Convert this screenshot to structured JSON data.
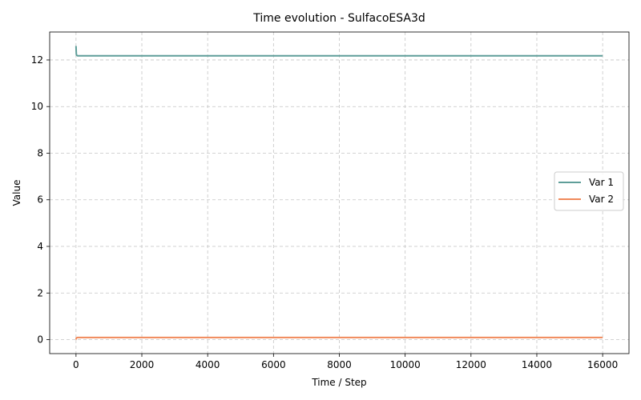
{
  "chart_data": {
    "type": "line",
    "title": "Time evolution - SulfacoESA3d",
    "xlabel": "Time / Step",
    "ylabel": "Value",
    "xlim": [
      -800,
      16800
    ],
    "ylim": [
      -0.6,
      13.2
    ],
    "xticks": [
      0,
      2000,
      4000,
      6000,
      8000,
      10000,
      12000,
      14000,
      16000
    ],
    "yticks": [
      0,
      2,
      4,
      6,
      8,
      10,
      12
    ],
    "grid": true,
    "legend_position": "center-right",
    "series": [
      {
        "name": "Var 1",
        "color": "#5f9e99",
        "x": [
          0,
          5,
          10,
          20,
          50,
          100,
          1000,
          4000,
          8000,
          12000,
          16000
        ],
        "y": [
          12.6,
          12.4,
          12.25,
          12.2,
          12.18,
          12.18,
          12.18,
          12.18,
          12.18,
          12.18,
          12.18
        ]
      },
      {
        "name": "Var 2",
        "color": "#f0895a",
        "x": [
          0,
          5,
          10,
          20,
          50,
          100,
          1000,
          4000,
          8000,
          12000,
          16000
        ],
        "y": [
          0.0,
          0.03,
          0.06,
          0.08,
          0.09,
          0.09,
          0.09,
          0.09,
          0.09,
          0.09,
          0.09
        ]
      }
    ]
  }
}
